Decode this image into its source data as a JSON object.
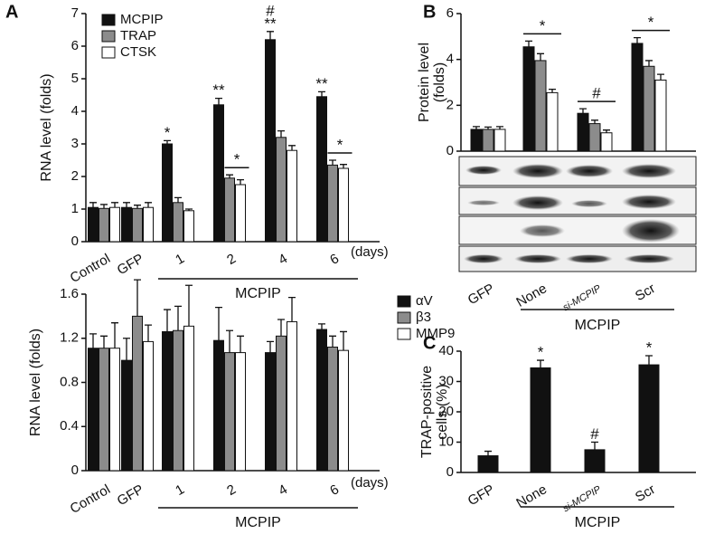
{
  "panel_labels": [
    "A",
    "B",
    "C"
  ],
  "chart_data": [
    {
      "type": "bar",
      "ylabel": "RNA level (folds)",
      "categories": [
        "Control",
        "GFP",
        "1",
        "2",
        "4",
        "6"
      ],
      "unit_label": "(days)",
      "group_label": "MCPIP",
      "group_span": [
        2,
        5
      ],
      "ylim": [
        0,
        7
      ],
      "yticks": [
        0,
        1,
        2,
        3,
        4,
        5,
        6,
        7
      ],
      "legend": "upper left",
      "series": [
        {
          "name": "MCPIP",
          "color": "#111111",
          "values": [
            1.05,
            1.05,
            3.0,
            4.2,
            6.2,
            4.45
          ],
          "errors": [
            0.15,
            0.15,
            0.1,
            0.2,
            0.25,
            0.15
          ]
        },
        {
          "name": "TRAP",
          "color": "#8c8c8c",
          "values": [
            1.02,
            1.02,
            1.2,
            1.95,
            3.2,
            2.35
          ],
          "errors": [
            0.12,
            0.1,
            0.15,
            0.1,
            0.2,
            0.15
          ]
        },
        {
          "name": "CTSK",
          "color": "#ffffff",
          "values": [
            1.05,
            1.05,
            0.95,
            1.75,
            2.8,
            2.25
          ],
          "errors": [
            0.15,
            0.15,
            0.05,
            0.15,
            0.15,
            0.12
          ]
        }
      ],
      "annotations": [
        {
          "text": "*",
          "category": 2,
          "series": [
            0
          ]
        },
        {
          "text": "**",
          "category": 3,
          "series": [
            0
          ]
        },
        {
          "text": "*",
          "category": 3,
          "series": [
            1,
            2
          ]
        },
        {
          "text": "**",
          "category": 4,
          "series": [
            0
          ]
        },
        {
          "text": "#",
          "category": 4,
          "series": [
            0
          ]
        },
        {
          "text": "**",
          "category": 5,
          "series": [
            0
          ]
        },
        {
          "text": "*",
          "category": 5,
          "series": [
            1,
            2
          ]
        }
      ]
    },
    {
      "type": "bar",
      "ylabel": "RNA level (folds)",
      "categories": [
        "Control",
        "GFP",
        "1",
        "2",
        "4",
        "6"
      ],
      "unit_label": "(days)",
      "group_label": "MCPIP",
      "group_span": [
        2,
        5
      ],
      "ylim": [
        0,
        1.6
      ],
      "yticks": [
        0,
        0.4,
        0.8,
        1.2,
        1.6
      ],
      "legend": "upper right",
      "series": [
        {
          "name": "αV",
          "color": "#111111",
          "values": [
            1.11,
            1.0,
            1.26,
            1.18,
            1.07,
            1.28
          ],
          "errors": [
            0.13,
            0.2,
            0.2,
            0.3,
            0.1,
            0.05
          ]
        },
        {
          "name": "β3",
          "color": "#8c8c8c",
          "values": [
            1.11,
            1.4,
            1.27,
            1.07,
            1.22,
            1.12
          ],
          "errors": [
            0.11,
            0.33,
            0.22,
            0.2,
            0.15,
            0.1
          ]
        },
        {
          "name": "MMP9",
          "color": "#ffffff",
          "values": [
            1.11,
            1.17,
            1.31,
            1.07,
            1.35,
            1.09
          ],
          "errors": [
            0.23,
            0.15,
            0.37,
            0.15,
            0.22,
            0.17
          ]
        }
      ],
      "annotations": []
    },
    {
      "type": "bar",
      "ylabel": [
        "Protein level",
        "(folds)"
      ],
      "categories": [
        "GFP",
        "None",
        "si-MCPIP",
        "Scr"
      ],
      "group_label": "MCPIP",
      "group_span": [
        1,
        3
      ],
      "ylim": [
        0,
        6
      ],
      "yticks": [
        0,
        2,
        4,
        6
      ],
      "series": [
        {
          "color": "#111111",
          "values": [
            0.95,
            4.55,
            1.65,
            4.7
          ],
          "errors": [
            0.12,
            0.25,
            0.2,
            0.25
          ]
        },
        {
          "color": "#8c8c8c",
          "values": [
            0.95,
            3.95,
            1.2,
            3.7
          ],
          "errors": [
            0.1,
            0.3,
            0.15,
            0.25
          ]
        },
        {
          "color": "#ffffff",
          "values": [
            0.95,
            2.55,
            0.8,
            3.1
          ],
          "errors": [
            0.12,
            0.15,
            0.12,
            0.25
          ]
        }
      ],
      "annotations": [
        {
          "text": "*",
          "category": 1,
          "series": [
            0,
            2
          ]
        },
        {
          "text": "#",
          "category": 2,
          "series": [
            0,
            2
          ]
        },
        {
          "text": "*",
          "category": 3,
          "series": [
            0,
            2
          ]
        }
      ]
    },
    {
      "type": "bar",
      "ylabel": [
        "TRAP-positive",
        "cells (%)"
      ],
      "categories": [
        "GFP",
        "None",
        "si-MCPIP",
        "Scr"
      ],
      "group_label": "MCPIP",
      "group_span": [
        1,
        3
      ],
      "ylim": [
        0,
        40
      ],
      "yticks": [
        0,
        10,
        20,
        30,
        40
      ],
      "color": "#111111",
      "values": [
        5.5,
        34.5,
        7.5,
        35.5
      ],
      "errors": [
        1.5,
        2.5,
        2.5,
        3
      ],
      "annotations": [
        {
          "text": "*",
          "category": 1
        },
        {
          "text": "#",
          "category": 2
        },
        {
          "text": "*",
          "category": 3
        }
      ]
    }
  ]
}
